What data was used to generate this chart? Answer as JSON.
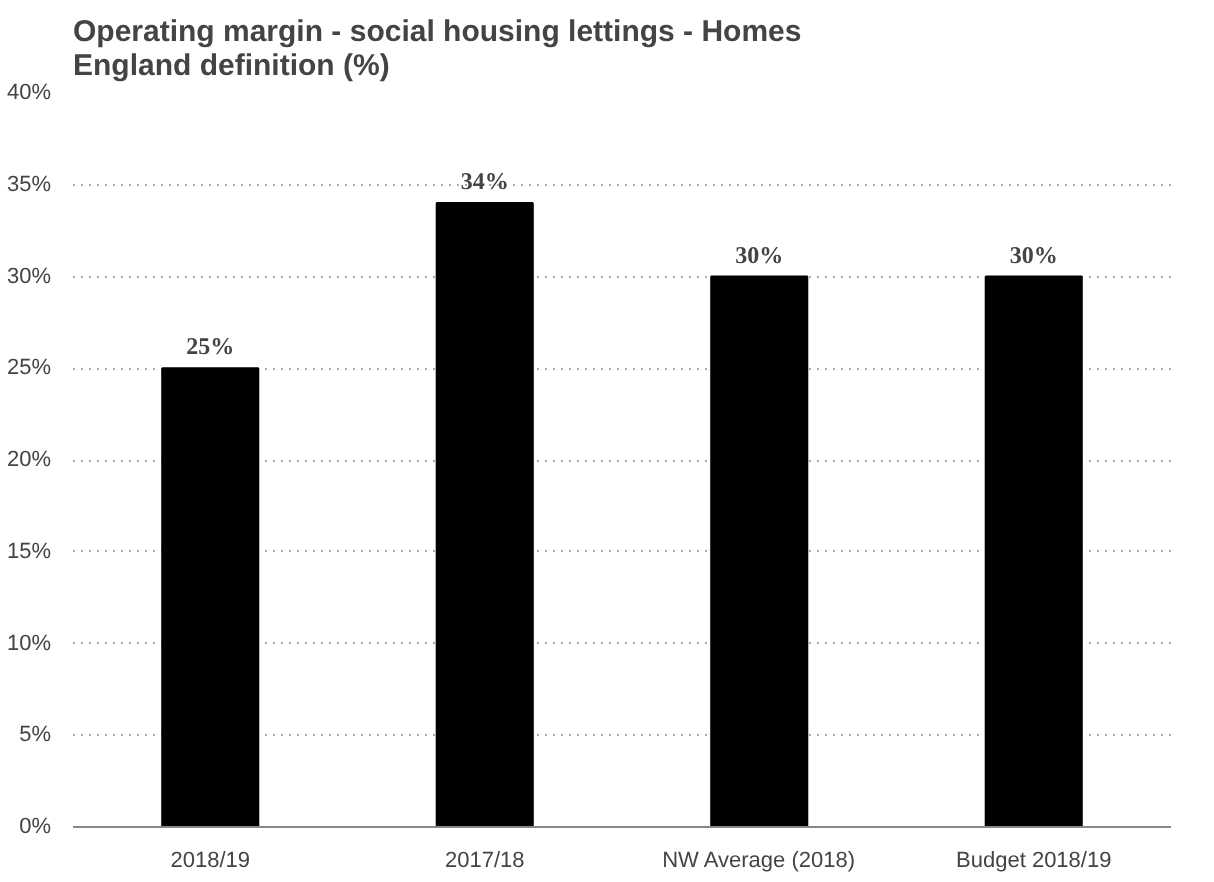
{
  "chart_data": {
    "type": "bar",
    "title": "Operating margin - social housing lettings - Homes\nEngland definition (%)",
    "categories": [
      "2018/19",
      "2017/18",
      "NW Average (2018)",
      "Budget 2018/19"
    ],
    "values": [
      25,
      34,
      30,
      30
    ],
    "color": "#000000",
    "value_labels": [
      "25%",
      "34%",
      "30%",
      "30%"
    ],
    "ylim": [
      0,
      40
    ],
    "yticks": [
      {
        "value": 0,
        "label": "0%"
      },
      {
        "value": 5,
        "label": "5%"
      },
      {
        "value": 10,
        "label": "10%"
      },
      {
        "value": 15,
        "label": "15%"
      },
      {
        "value": 20,
        "label": "20%"
      },
      {
        "value": 25,
        "label": "25%"
      },
      {
        "value": 30,
        "label": "30%"
      },
      {
        "value": 35,
        "label": "35%"
      },
      {
        "value": 40,
        "label": "40%"
      }
    ],
    "grid": "y"
  }
}
